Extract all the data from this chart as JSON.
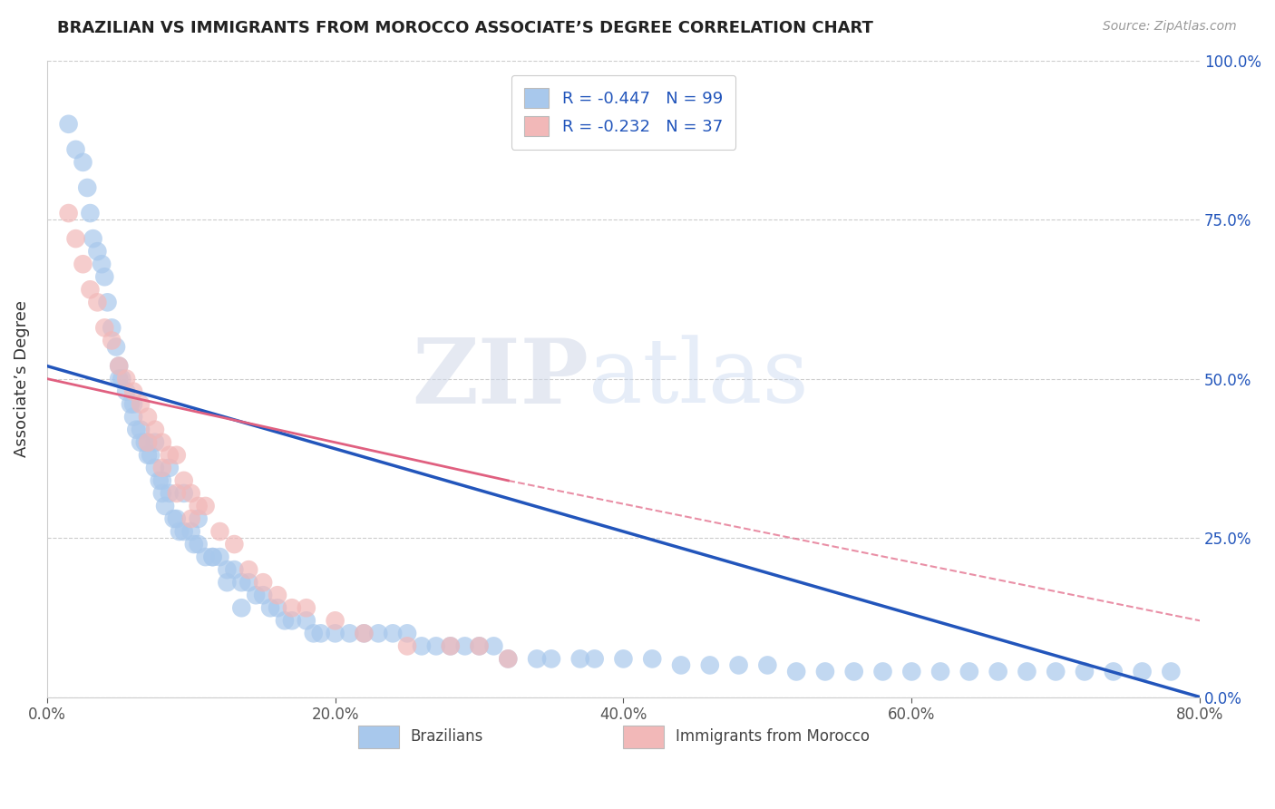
{
  "title": "BRAZILIAN VS IMMIGRANTS FROM MOROCCO ASSOCIATE’S DEGREE CORRELATION CHART",
  "source": "Source: ZipAtlas.com",
  "ylabel": "Associate’s Degree",
  "x_tick_labels": [
    "0.0%",
    "20.0%",
    "40.0%",
    "60.0%",
    "80.0%"
  ],
  "x_tick_values": [
    0,
    20,
    40,
    60,
    80
  ],
  "y_tick_labels": [
    "0.0%",
    "25.0%",
    "50.0%",
    "75.0%",
    "100.0%"
  ],
  "y_tick_values": [
    0,
    25,
    50,
    75,
    100
  ],
  "xlim": [
    0,
    80
  ],
  "ylim": [
    0,
    100
  ],
  "legend_label1": "Brazilians",
  "legend_label2": "Immigrants from Morocco",
  "R1": -0.447,
  "N1": 99,
  "R2": -0.232,
  "N2": 37,
  "color_blue": "#A8C8EC",
  "color_pink": "#F2B8B8",
  "color_blue_line": "#2255BB",
  "color_pink_line": "#E06080",
  "watermark_zip": "ZIP",
  "watermark_atlas": "atlas",
  "background_color": "#FFFFFF",
  "grid_color": "#CCCCCC",
  "title_color": "#222222",
  "blue_scatter_x": [
    1.5,
    2.0,
    2.5,
    2.8,
    3.0,
    3.2,
    3.5,
    3.8,
    4.0,
    4.2,
    4.5,
    4.8,
    5.0,
    5.0,
    5.2,
    5.5,
    5.8,
    6.0,
    6.0,
    6.2,
    6.5,
    6.8,
    7.0,
    7.0,
    7.2,
    7.5,
    7.8,
    8.0,
    8.0,
    8.2,
    8.5,
    8.8,
    9.0,
    9.2,
    9.5,
    10.0,
    10.2,
    10.5,
    11.0,
    11.5,
    12.0,
    12.5,
    13.0,
    13.5,
    14.0,
    14.5,
    15.0,
    15.5,
    16.0,
    16.5,
    17.0,
    18.0,
    18.5,
    19.0,
    20.0,
    21.0,
    22.0,
    23.0,
    24.0,
    25.0,
    26.0,
    27.0,
    28.0,
    29.0,
    30.0,
    31.0,
    32.0,
    34.0,
    35.0,
    37.0,
    38.0,
    40.0,
    42.0,
    44.0,
    46.0,
    48.0,
    50.0,
    52.0,
    54.0,
    56.0,
    58.0,
    60.0,
    62.0,
    64.0,
    66.0,
    68.0,
    70.0,
    72.0,
    74.0,
    76.0,
    78.0,
    6.5,
    7.5,
    8.5,
    9.5,
    10.5,
    11.5,
    12.5,
    13.5
  ],
  "blue_scatter_y": [
    90,
    86,
    84,
    80,
    76,
    72,
    70,
    68,
    66,
    62,
    58,
    55,
    52,
    50,
    50,
    48,
    46,
    46,
    44,
    42,
    40,
    40,
    40,
    38,
    38,
    36,
    34,
    34,
    32,
    30,
    32,
    28,
    28,
    26,
    26,
    26,
    24,
    24,
    22,
    22,
    22,
    20,
    20,
    18,
    18,
    16,
    16,
    14,
    14,
    12,
    12,
    12,
    10,
    10,
    10,
    10,
    10,
    10,
    10,
    10,
    8,
    8,
    8,
    8,
    8,
    8,
    6,
    6,
    6,
    6,
    6,
    6,
    6,
    5,
    5,
    5,
    5,
    4,
    4,
    4,
    4,
    4,
    4,
    4,
    4,
    4,
    4,
    4,
    4,
    4,
    4,
    42,
    40,
    36,
    32,
    28,
    22,
    18,
    14
  ],
  "pink_scatter_x": [
    1.5,
    2.0,
    2.5,
    3.0,
    3.5,
    4.0,
    4.5,
    5.0,
    5.5,
    6.0,
    6.5,
    7.0,
    7.5,
    8.0,
    8.5,
    9.0,
    9.5,
    10.0,
    10.5,
    11.0,
    12.0,
    13.0,
    14.0,
    15.0,
    16.0,
    17.0,
    18.0,
    20.0,
    22.0,
    25.0,
    28.0,
    30.0,
    32.0,
    7.0,
    8.0,
    9.0,
    10.0
  ],
  "pink_scatter_y": [
    76,
    72,
    68,
    64,
    62,
    58,
    56,
    52,
    50,
    48,
    46,
    44,
    42,
    40,
    38,
    38,
    34,
    32,
    30,
    30,
    26,
    24,
    20,
    18,
    16,
    14,
    14,
    12,
    10,
    8,
    8,
    8,
    6,
    40,
    36,
    32,
    28
  ],
  "blue_line_x0": 0,
  "blue_line_x1": 80,
  "blue_line_y0": 52,
  "blue_line_y1": 0,
  "pink_solid_x0": 0,
  "pink_solid_x1": 32,
  "pink_solid_y0": 50,
  "pink_solid_y1": 34,
  "pink_dash_x0": 32,
  "pink_dash_x1": 80,
  "pink_dash_y0": 34,
  "pink_dash_y1": 12
}
